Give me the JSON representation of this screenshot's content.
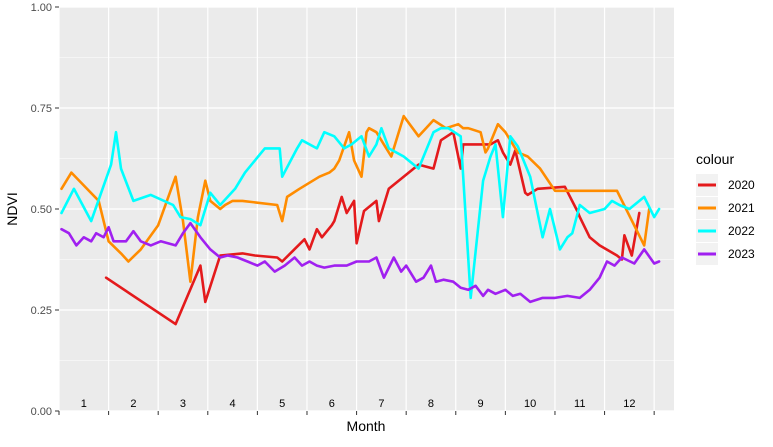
{
  "chart_data": {
    "type": "line",
    "title": "",
    "xlabel": "Month",
    "ylabel": "NDVI",
    "xlim": [
      0.5,
      12.9
    ],
    "ylim": [
      0,
      1
    ],
    "y_ticks": [
      "0.00",
      "0.25",
      "0.50",
      "0.75",
      "1.00"
    ],
    "y_tick_values": [
      0,
      0.25,
      0.5,
      0.75,
      1.0
    ],
    "x_tick_labels": [
      "1",
      "2",
      "3",
      "4",
      "5",
      "6",
      "7",
      "8",
      "9",
      "10",
      "11",
      "12"
    ],
    "x_tick_values": [
      1,
      2,
      3,
      4,
      5,
      6,
      7,
      8,
      9,
      10,
      11,
      12
    ],
    "grid": true,
    "legend": {
      "title": "colour",
      "placement": "right"
    },
    "series": [
      {
        "name": "2020",
        "color": "#e41a1c",
        "x": [
          1.45,
          2.85,
          3.35,
          3.45,
          3.75,
          4.2,
          4.45,
          4.9,
          5.0,
          5.45,
          5.55,
          5.7,
          5.8,
          6.0,
          6.05,
          6.2,
          6.3,
          6.45,
          6.5,
          6.65,
          6.9,
          6.95,
          7.15,
          7.75,
          8.05,
          8.2,
          8.45,
          8.6,
          8.65,
          9.2,
          9.35,
          9.45,
          9.6,
          9.7,
          9.9,
          9.95,
          10.15,
          10.7,
          10.95,
          11.0,
          11.2,
          11.4,
          11.75,
          11.85,
          11.9,
          12.05,
          12.2
        ],
        "y": [
          0.33,
          0.215,
          0.36,
          0.27,
          0.385,
          0.39,
          0.385,
          0.38,
          0.37,
          0.425,
          0.4,
          0.45,
          0.43,
          0.46,
          0.47,
          0.53,
          0.49,
          0.52,
          0.415,
          0.495,
          0.52,
          0.47,
          0.55,
          0.61,
          0.6,
          0.67,
          0.69,
          0.6,
          0.66,
          0.66,
          0.67,
          0.64,
          0.61,
          0.645,
          0.54,
          0.535,
          0.55,
          0.555,
          0.495,
          0.48,
          0.43,
          0.41,
          0.385,
          0.375,
          0.435,
          0.385,
          0.49
        ]
      },
      {
        "name": "2021",
        "color": "#ff8c00",
        "x": [
          0.55,
          0.75,
          1.3,
          1.5,
          1.75,
          1.9,
          2.15,
          2.5,
          2.85,
          3.0,
          3.15,
          3.3,
          3.45,
          3.55,
          3.75,
          3.85,
          4.0,
          4.2,
          4.9,
          5.0,
          5.1,
          5.35,
          5.75,
          5.95,
          6.05,
          6.15,
          6.35,
          6.45,
          6.6,
          6.7,
          6.75,
          6.9,
          7.2,
          7.45,
          7.75,
          8.05,
          8.3,
          8.55,
          8.65,
          8.75,
          9.0,
          9.1,
          9.15,
          9.35,
          9.5,
          9.75,
          9.95,
          10.2,
          10.5,
          11.0,
          11.3,
          11.5,
          11.6,
          11.75,
          12.3,
          12.4
        ],
        "y": [
          0.55,
          0.59,
          0.52,
          0.42,
          0.39,
          0.37,
          0.4,
          0.46,
          0.58,
          0.47,
          0.32,
          0.48,
          0.57,
          0.52,
          0.5,
          0.51,
          0.52,
          0.52,
          0.51,
          0.47,
          0.53,
          0.55,
          0.58,
          0.59,
          0.6,
          0.62,
          0.69,
          0.62,
          0.58,
          0.69,
          0.7,
          0.69,
          0.63,
          0.73,
          0.68,
          0.72,
          0.7,
          0.71,
          0.7,
          0.7,
          0.69,
          0.64,
          0.65,
          0.71,
          0.69,
          0.64,
          0.63,
          0.6,
          0.545,
          0.545,
          0.545,
          0.545,
          0.545,
          0.545,
          0.41,
          0.5
        ]
      },
      {
        "name": "2022",
        "color": "#00ffff",
        "x": [
          0.55,
          0.8,
          1.15,
          1.55,
          1.65,
          1.75,
          2.0,
          2.35,
          2.8,
          2.95,
          3.15,
          3.35,
          3.55,
          3.75,
          4.05,
          4.25,
          4.65,
          4.95,
          5.0,
          5.3,
          5.4,
          5.55,
          5.7,
          5.85,
          6.05,
          6.25,
          6.4,
          6.6,
          6.75,
          6.9,
          7.0,
          7.15,
          7.45,
          7.75,
          8.05,
          8.2,
          8.35,
          8.6,
          8.8,
          9.05,
          9.2,
          9.3,
          9.45,
          9.6,
          9.75,
          10.0,
          10.25,
          10.4,
          10.6,
          10.75,
          10.85,
          11.0,
          11.2,
          11.5,
          11.65,
          11.8,
          12.0,
          12.3,
          12.5,
          12.6
        ],
        "y": [
          0.49,
          0.55,
          0.47,
          0.61,
          0.69,
          0.6,
          0.52,
          0.535,
          0.51,
          0.48,
          0.475,
          0.46,
          0.54,
          0.51,
          0.55,
          0.59,
          0.65,
          0.65,
          0.58,
          0.65,
          0.67,
          0.66,
          0.65,
          0.69,
          0.68,
          0.65,
          0.66,
          0.68,
          0.63,
          0.66,
          0.7,
          0.65,
          0.63,
          0.6,
          0.69,
          0.7,
          0.7,
          0.68,
          0.28,
          0.57,
          0.63,
          0.66,
          0.48,
          0.68,
          0.655,
          0.58,
          0.43,
          0.5,
          0.4,
          0.43,
          0.44,
          0.51,
          0.49,
          0.5,
          0.52,
          0.51,
          0.5,
          0.53,
          0.48,
          0.5
        ]
      },
      {
        "name": "2023",
        "color": "#a020f0",
        "x": [
          0.55,
          0.7,
          0.85,
          1.0,
          1.15,
          1.25,
          1.4,
          1.5,
          1.6,
          1.85,
          2.0,
          2.15,
          2.35,
          2.55,
          2.85,
          3.0,
          3.15,
          3.35,
          3.55,
          3.75,
          3.9,
          4.1,
          4.3,
          4.5,
          4.65,
          4.85,
          5.05,
          5.25,
          5.4,
          5.55,
          5.7,
          5.85,
          6.05,
          6.3,
          6.5,
          6.75,
          6.9,
          7.05,
          7.25,
          7.4,
          7.5,
          7.7,
          7.85,
          8.0,
          8.1,
          8.25,
          8.45,
          8.6,
          8.75,
          8.9,
          9.05,
          9.15,
          9.3,
          9.5,
          9.65,
          9.8,
          10.0,
          10.25,
          10.5,
          10.75,
          11.0,
          11.2,
          11.4,
          11.55,
          11.7,
          11.85,
          12.1,
          12.3,
          12.5,
          12.6
        ],
        "y": [
          0.45,
          0.44,
          0.41,
          0.43,
          0.42,
          0.44,
          0.43,
          0.455,
          0.42,
          0.42,
          0.445,
          0.42,
          0.41,
          0.42,
          0.41,
          0.44,
          0.465,
          0.43,
          0.4,
          0.38,
          0.385,
          0.38,
          0.37,
          0.36,
          0.37,
          0.345,
          0.36,
          0.38,
          0.36,
          0.37,
          0.36,
          0.355,
          0.36,
          0.36,
          0.37,
          0.37,
          0.38,
          0.33,
          0.38,
          0.345,
          0.36,
          0.32,
          0.33,
          0.36,
          0.32,
          0.325,
          0.32,
          0.305,
          0.3,
          0.31,
          0.285,
          0.3,
          0.29,
          0.3,
          0.285,
          0.29,
          0.27,
          0.28,
          0.28,
          0.285,
          0.28,
          0.3,
          0.33,
          0.37,
          0.36,
          0.38,
          0.365,
          0.4,
          0.365,
          0.37
        ]
      }
    ]
  }
}
